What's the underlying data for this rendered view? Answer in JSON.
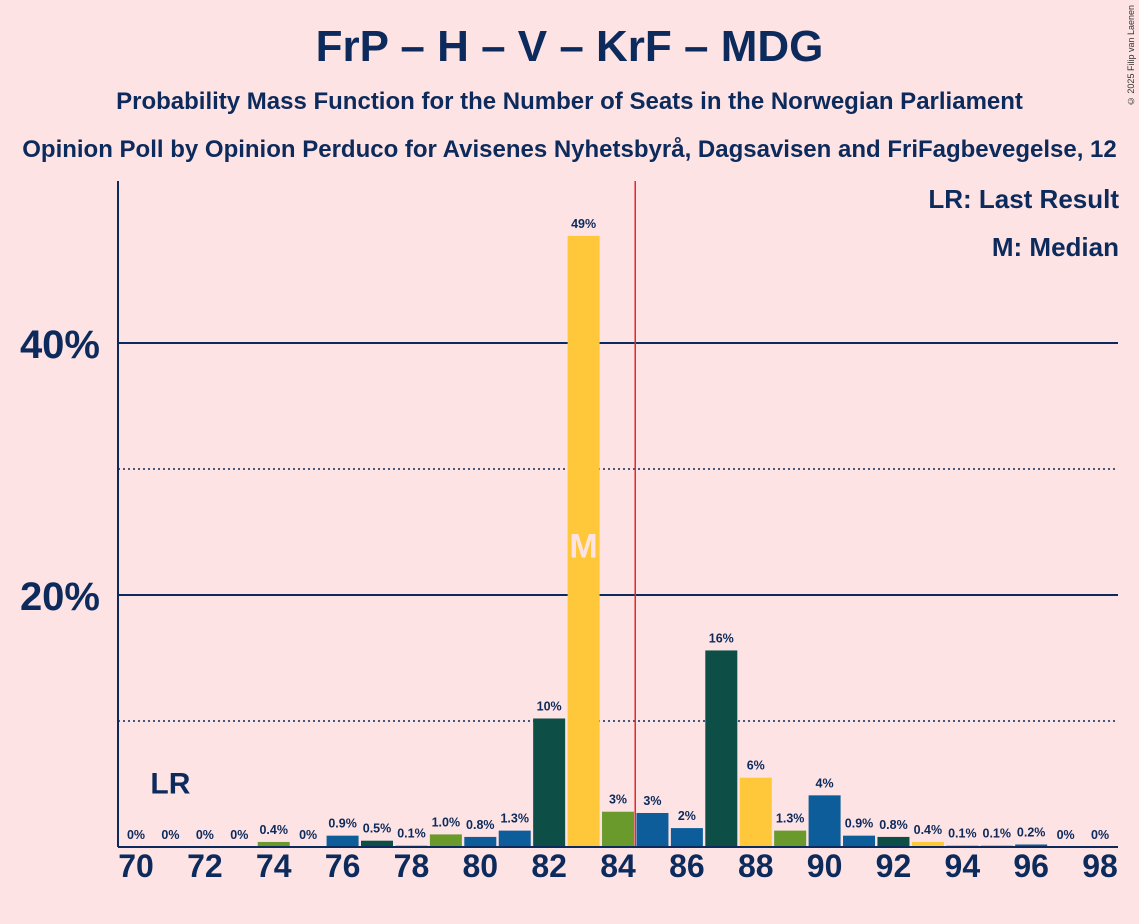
{
  "title": "FrP – H – V – KrF – MDG",
  "subtitle": "Probability Mass Function for the Number of Seats in the Norwegian Parliament",
  "source": "Opinion Poll by Opinion Perduco for Avisenes Nyhetsbyrå, Dagsavisen and FriFagbevegelse, 12",
  "copyright": "© 2025 Filip van Laenen",
  "legend": {
    "lr": "LR: Last Result",
    "m": "M: Median"
  },
  "markers": {
    "last_result_label": "LR",
    "last_result_seat": 71,
    "median_label": "M",
    "median_seat": 83,
    "majority_line_seat": 84.5
  },
  "colors": {
    "background": "#fde3e4",
    "axis": "#0c2a5b",
    "majority_line": "#e8262a",
    "frp": "#0d5d9b",
    "h": "#0d4f46",
    "v": "#ffc83a",
    "krf": "#6a9a2b"
  },
  "chart_data": {
    "type": "bar",
    "x": [
      70,
      71,
      72,
      73,
      74,
      75,
      76,
      77,
      78,
      79,
      80,
      81,
      82,
      83,
      84,
      85,
      86,
      87,
      88,
      89,
      90,
      91,
      92,
      93,
      94,
      95,
      96,
      97,
      98
    ],
    "values": [
      0,
      0,
      0,
      0,
      0.4,
      0,
      0.9,
      0.5,
      0.1,
      1.0,
      0.8,
      1.3,
      10,
      49,
      3,
      3,
      2,
      16,
      6,
      1.3,
      4,
      0.9,
      0.8,
      0.4,
      0.1,
      0.1,
      0.2,
      0,
      0
    ],
    "heights": [
      0,
      0,
      0,
      0,
      0.4,
      0,
      0.9,
      0.5,
      0.1,
      1.0,
      0.8,
      1.3,
      10.2,
      48.5,
      2.8,
      2.7,
      1.5,
      15.6,
      5.5,
      1.3,
      4.1,
      0.9,
      0.8,
      0.4,
      0.1,
      0.1,
      0.2,
      0,
      0
    ],
    "labels": [
      "0%",
      "0%",
      "0%",
      "0%",
      "0.4%",
      "0%",
      "0.9%",
      "0.5%",
      "0.1%",
      "1.0%",
      "0.8%",
      "1.3%",
      "10%",
      "49%",
      "3%",
      "3%",
      "2%",
      "16%",
      "6%",
      "1.3%",
      "4%",
      "0.9%",
      "0.8%",
      "0.4%",
      "0.1%",
      "0.1%",
      "0.2%",
      "0%",
      "0%"
    ],
    "bar_colors": [
      "frp",
      "frp",
      "frp",
      "frp",
      "krf",
      "frp",
      "frp",
      "h",
      "frp",
      "krf",
      "frp",
      "frp",
      "h",
      "v",
      "krf",
      "frp",
      "frp",
      "h",
      "v",
      "krf",
      "frp",
      "frp",
      "h",
      "v",
      "frp",
      "frp",
      "frp",
      "frp",
      "frp"
    ],
    "x_tick_labels": [
      "70",
      "72",
      "74",
      "76",
      "78",
      "80",
      "82",
      "84",
      "86",
      "88",
      "90",
      "92",
      "94",
      "96",
      "98"
    ],
    "y_tick_labels": [
      "20%",
      "40%"
    ],
    "ylim": [
      0,
      52
    ],
    "y_solid_lines": [
      20,
      40
    ],
    "y_dotted_lines": [
      10,
      30
    ],
    "grid": true,
    "legend_placement": "top-right"
  }
}
